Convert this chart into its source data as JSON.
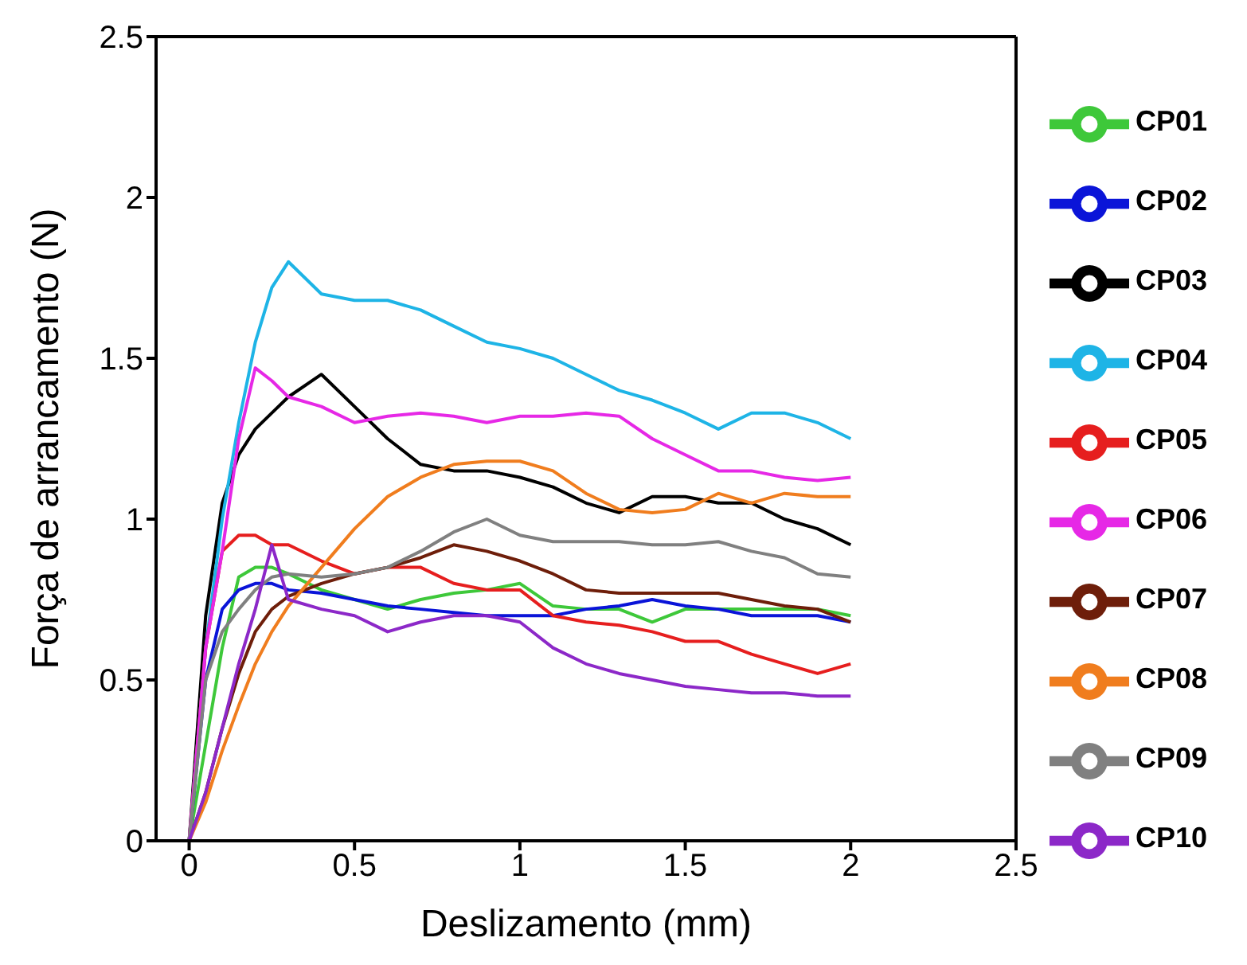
{
  "chart_data": {
    "type": "line",
    "xlabel": "Deslizamento (mm)",
    "ylabel": "Força de arrancamento (N)",
    "x": [
      0,
      0.05,
      0.1,
      0.15,
      0.2,
      0.25,
      0.3,
      0.4,
      0.5,
      0.6,
      0.7,
      0.8,
      0.9,
      1.0,
      1.1,
      1.2,
      1.3,
      1.4,
      1.5,
      1.6,
      1.7,
      1.8,
      1.9,
      2.0
    ],
    "series": [
      {
        "name": "CP01",
        "color": "#3ec83a",
        "values": [
          0,
          0.3,
          0.6,
          0.82,
          0.85,
          0.85,
          0.83,
          0.78,
          0.75,
          0.72,
          0.75,
          0.77,
          0.78,
          0.8,
          0.73,
          0.72,
          0.72,
          0.68,
          0.72,
          0.72,
          0.72,
          0.72,
          0.72,
          0.7
        ]
      },
      {
        "name": "CP02",
        "color": "#0a14d8",
        "values": [
          0,
          0.5,
          0.72,
          0.78,
          0.8,
          0.8,
          0.78,
          0.77,
          0.75,
          0.73,
          0.72,
          0.71,
          0.7,
          0.7,
          0.7,
          0.72,
          0.73,
          0.75,
          0.73,
          0.72,
          0.7,
          0.7,
          0.7,
          0.68
        ]
      },
      {
        "name": "CP03",
        "color": "#000000",
        "values": [
          0,
          0.7,
          1.05,
          1.2,
          1.28,
          1.33,
          1.38,
          1.45,
          1.35,
          1.25,
          1.17,
          1.15,
          1.15,
          1.13,
          1.1,
          1.05,
          1.02,
          1.07,
          1.07,
          1.05,
          1.05,
          1.0,
          0.97,
          0.92
        ]
      },
      {
        "name": "CP04",
        "color": "#1eb4e6",
        "values": [
          0,
          0.6,
          1.0,
          1.3,
          1.55,
          1.72,
          1.8,
          1.7,
          1.68,
          1.68,
          1.65,
          1.6,
          1.55,
          1.53,
          1.5,
          1.45,
          1.4,
          1.37,
          1.33,
          1.28,
          1.33,
          1.33,
          1.3,
          1.25
        ]
      },
      {
        "name": "CP05",
        "color": "#e61e1e",
        "values": [
          0,
          0.6,
          0.9,
          0.95,
          0.95,
          0.92,
          0.92,
          0.87,
          0.83,
          0.85,
          0.85,
          0.8,
          0.78,
          0.78,
          0.7,
          0.68,
          0.67,
          0.65,
          0.62,
          0.62,
          0.58,
          0.55,
          0.52,
          0.55
        ]
      },
      {
        "name": "CP06",
        "color": "#e628e6",
        "values": [
          0,
          0.6,
          0.9,
          1.25,
          1.47,
          1.43,
          1.38,
          1.35,
          1.3,
          1.32,
          1.33,
          1.32,
          1.3,
          1.32,
          1.32,
          1.33,
          1.32,
          1.25,
          1.2,
          1.15,
          1.15,
          1.13,
          1.12,
          1.13
        ]
      },
      {
        "name": "CP07",
        "color": "#6e1e0a",
        "values": [
          0,
          0.15,
          0.35,
          0.52,
          0.65,
          0.72,
          0.76,
          0.8,
          0.83,
          0.85,
          0.88,
          0.92,
          0.9,
          0.87,
          0.83,
          0.78,
          0.77,
          0.77,
          0.77,
          0.77,
          0.75,
          0.73,
          0.72,
          0.68
        ]
      },
      {
        "name": "CP08",
        "color": "#f07d1e",
        "values": [
          0,
          0.12,
          0.28,
          0.42,
          0.55,
          0.65,
          0.73,
          0.85,
          0.97,
          1.07,
          1.13,
          1.17,
          1.18,
          1.18,
          1.15,
          1.08,
          1.03,
          1.02,
          1.03,
          1.08,
          1.05,
          1.08,
          1.07,
          1.07
        ]
      },
      {
        "name": "CP09",
        "color": "#808080",
        "values": [
          0,
          0.5,
          0.65,
          0.72,
          0.78,
          0.82,
          0.83,
          0.82,
          0.83,
          0.85,
          0.9,
          0.96,
          1.0,
          0.95,
          0.93,
          0.93,
          0.93,
          0.92,
          0.92,
          0.93,
          0.9,
          0.88,
          0.83,
          0.82
        ]
      },
      {
        "name": "CP10",
        "color": "#8c28c8",
        "values": [
          0,
          0.15,
          0.35,
          0.55,
          0.72,
          0.92,
          0.75,
          0.72,
          0.7,
          0.65,
          0.68,
          0.7,
          0.7,
          0.68,
          0.6,
          0.55,
          0.52,
          0.5,
          0.48,
          0.47,
          0.46,
          0.46,
          0.45,
          0.45
        ]
      }
    ],
    "xlim": [
      -0.1,
      2.5
    ],
    "xticks": [
      0,
      0.5,
      1,
      1.5,
      2,
      2.5
    ],
    "ylim": [
      0,
      2.5
    ],
    "yticks": [
      0,
      0.5,
      1,
      1.5,
      2,
      2.5
    ],
    "legend": "right",
    "marker": "none"
  }
}
